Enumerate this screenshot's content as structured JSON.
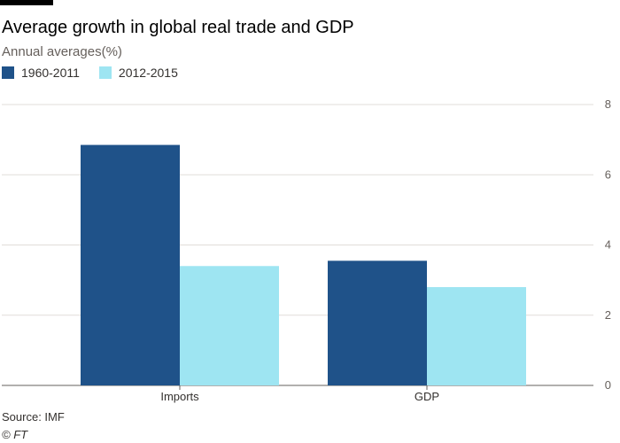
{
  "header": {
    "title": "Average growth in global real trade and GDP",
    "subtitle": "Annual averages(%)"
  },
  "footer": {
    "source": "Source: IMF",
    "credit": "© FT"
  },
  "colors": {
    "series1": "#1f5289",
    "series2": "#9ee5f2",
    "grid": "#e1ddd9",
    "axis": "#66605c"
  },
  "chart_data": {
    "type": "bar",
    "title": "Average growth in global real trade and GDP",
    "subtitle": "Annual averages(%)",
    "categories": [
      "Imports",
      "GDP"
    ],
    "series": [
      {
        "name": "1960-2011",
        "values": [
          6.85,
          3.55
        ]
      },
      {
        "name": "2012-2015",
        "values": [
          3.4,
          2.8
        ]
      }
    ],
    "ylim": [
      0,
      8
    ],
    "yticks": [
      "0",
      "2",
      "4",
      "6",
      "8"
    ],
    "grid": true,
    "legend": "top-left",
    "y_axis_side": "right"
  }
}
